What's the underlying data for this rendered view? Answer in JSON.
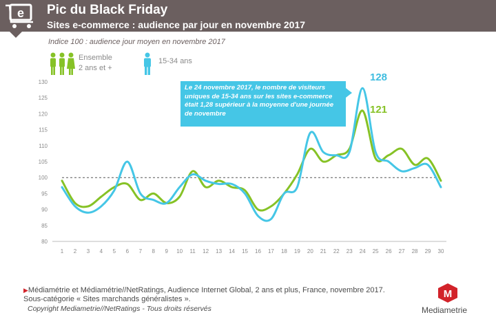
{
  "header": {
    "title": "Pic du Black Friday",
    "subtitle": "Sites e-commerce : audience par jour en novembre 2017",
    "icon": "shopping-cart-icon"
  },
  "indice_note": "Indice 100 : audience jour moyen en novembre 2017",
  "legend": {
    "ensemble_line1": "Ensemble",
    "ensemble_line2": "2 ans et +",
    "young": "15-34 ans"
  },
  "annotation": "Le 24 novembre 2017, le nombre de visiteurs uniques de 15-34 ans sur les sites e-commerce était 1,28 supérieur à la moyenne d'une journée de novembre",
  "peak_labels": {
    "young": "128",
    "ensemble": "121"
  },
  "source": "Médiamétrie et Médiamétrie//NetRatings, Audience Internet Global, 2 ans et plus, France, novembre 2017. Sous-catégorie « Sites marchands généralistes ».",
  "copyright": "Copyright Mediametrie//NetRatings - Tous droits réservés",
  "brand": "Mediametrie",
  "colors": {
    "header": "#6b5f5f",
    "ensemble": "#86c226",
    "young": "#45c6e6",
    "brand_red": "#d2232a"
  },
  "chart_data": {
    "type": "line",
    "x": [
      1,
      2,
      3,
      4,
      5,
      6,
      7,
      8,
      9,
      10,
      11,
      12,
      13,
      14,
      15,
      16,
      17,
      18,
      19,
      20,
      21,
      22,
      23,
      24,
      25,
      26,
      27,
      28,
      29,
      30
    ],
    "ylim": [
      80,
      130
    ],
    "yticks": [
      "80",
      "85",
      "90",
      "95",
      "100",
      "105",
      "110",
      "115",
      "120",
      "125",
      "130"
    ],
    "reference_line": 100,
    "series": [
      {
        "name": "Ensemble 2 ans et +",
        "color": "#86c226",
        "values": [
          99,
          92,
          91,
          94,
          97,
          98,
          93,
          95,
          92,
          94,
          102,
          97,
          99,
          97,
          96,
          90,
          91,
          95,
          101,
          109,
          105,
          107,
          109,
          121,
          106,
          107,
          109,
          104,
          106,
          99
        ]
      },
      {
        "name": "15-34 ans",
        "color": "#45c6e6",
        "values": [
          97,
          91,
          89,
          91,
          96,
          105,
          95,
          93,
          92,
          97,
          101,
          99,
          98,
          98,
          95,
          88,
          87,
          95,
          97,
          114,
          108,
          107,
          108,
          128,
          108,
          105,
          102,
          103,
          104,
          97
        ]
      }
    ]
  }
}
